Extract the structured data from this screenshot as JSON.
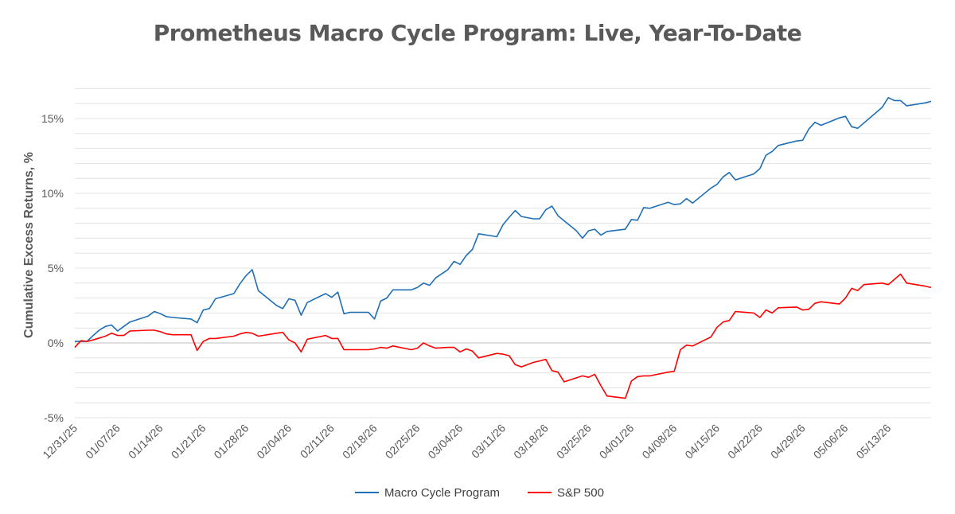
{
  "chart_data": {
    "type": "line",
    "title": "Prometheus Macro Cycle Program: Live, Year-To-Date",
    "ylabel": "Cumulative Excess Returns, %",
    "xlabel": "",
    "x_start": "2025-12-31",
    "x_end": "2026-05-20",
    "x_ticks": [
      "12/31/25",
      "01/07/26",
      "01/14/26",
      "01/21/26",
      "01/28/26",
      "02/04/26",
      "02/11/26",
      "02/18/26",
      "02/25/26",
      "03/04/26",
      "03/11/26",
      "03/18/26",
      "03/25/26",
      "04/01/26",
      "04/08/26",
      "04/15/26",
      "04/22/26",
      "04/29/26",
      "05/06/26",
      "05/13/26"
    ],
    "y_ticks": [
      "-5%",
      "0%",
      "5%",
      "10%",
      "15%"
    ],
    "ylim": [
      -5,
      17.5
    ],
    "grid": true,
    "legend_position": "bottom",
    "series": [
      {
        "name": "Macro Cycle Program",
        "color": "#1f6fb5",
        "points": [
          [
            "2025-12-31",
            0.1
          ],
          [
            "2026-01-02",
            0.1
          ],
          [
            "2026-01-03",
            0.5
          ],
          [
            "2026-01-04",
            0.85
          ],
          [
            "2026-01-05",
            1.1
          ],
          [
            "2026-01-06",
            1.2
          ],
          [
            "2026-01-07",
            0.8
          ],
          [
            "2026-01-08",
            1.1
          ],
          [
            "2026-01-09",
            1.4
          ],
          [
            "2026-01-12",
            1.8
          ],
          [
            "2026-01-13",
            2.1
          ],
          [
            "2026-01-14",
            1.95
          ],
          [
            "2026-01-15",
            1.75
          ],
          [
            "2026-01-16",
            1.7
          ],
          [
            "2026-01-19",
            1.6
          ],
          [
            "2026-01-20",
            1.35
          ],
          [
            "2026-01-21",
            2.2
          ],
          [
            "2026-01-22",
            2.3
          ],
          [
            "2026-01-23",
            2.95
          ],
          [
            "2026-01-26",
            3.3
          ],
          [
            "2026-01-27",
            3.95
          ],
          [
            "2026-01-28",
            4.5
          ],
          [
            "2026-01-29",
            4.9
          ],
          [
            "2026-01-30",
            3.5
          ],
          [
            "2026-02-02",
            2.5
          ],
          [
            "2026-02-03",
            2.3
          ],
          [
            "2026-02-04",
            2.95
          ],
          [
            "2026-02-05",
            2.85
          ],
          [
            "2026-02-06",
            1.85
          ],
          [
            "2026-02-07",
            2.7
          ],
          [
            "2026-02-10",
            3.3
          ],
          [
            "2026-02-11",
            3.05
          ],
          [
            "2026-02-12",
            3.4
          ],
          [
            "2026-02-13",
            1.95
          ],
          [
            "2026-02-14",
            2.05
          ],
          [
            "2026-02-17",
            2.05
          ],
          [
            "2026-02-18",
            1.6
          ],
          [
            "2026-02-19",
            2.8
          ],
          [
            "2026-02-20",
            3.0
          ],
          [
            "2026-02-21",
            3.55
          ],
          [
            "2026-02-24",
            3.55
          ],
          [
            "2026-02-25",
            3.7
          ],
          [
            "2026-02-26",
            4.0
          ],
          [
            "2026-02-27",
            3.85
          ],
          [
            "2026-02-28",
            4.35
          ],
          [
            "2026-03-02",
            4.9
          ],
          [
            "2026-03-03",
            5.45
          ],
          [
            "2026-03-04",
            5.25
          ],
          [
            "2026-03-05",
            5.85
          ],
          [
            "2026-03-06",
            6.25
          ],
          [
            "2026-03-07",
            7.3
          ],
          [
            "2026-03-10",
            7.1
          ],
          [
            "2026-03-11",
            7.9
          ],
          [
            "2026-03-12",
            8.4
          ],
          [
            "2026-03-13",
            8.85
          ],
          [
            "2026-03-14",
            8.45
          ],
          [
            "2026-03-16",
            8.3
          ],
          [
            "2026-03-17",
            8.3
          ],
          [
            "2026-03-18",
            8.9
          ],
          [
            "2026-03-19",
            9.15
          ],
          [
            "2026-03-20",
            8.5
          ],
          [
            "2026-03-23",
            7.5
          ],
          [
            "2026-03-24",
            7.0
          ],
          [
            "2026-03-25",
            7.5
          ],
          [
            "2026-03-26",
            7.6
          ],
          [
            "2026-03-27",
            7.2
          ],
          [
            "2026-03-28",
            7.45
          ],
          [
            "2026-03-31",
            7.6
          ],
          [
            "2026-04-01",
            8.25
          ],
          [
            "2026-04-02",
            8.2
          ],
          [
            "2026-04-03",
            9.05
          ],
          [
            "2026-04-04",
            9.0
          ],
          [
            "2026-04-07",
            9.4
          ],
          [
            "2026-04-08",
            9.25
          ],
          [
            "2026-04-09",
            9.3
          ],
          [
            "2026-04-10",
            9.65
          ],
          [
            "2026-04-11",
            9.35
          ],
          [
            "2026-04-14",
            10.35
          ],
          [
            "2026-04-15",
            10.6
          ],
          [
            "2026-04-16",
            11.1
          ],
          [
            "2026-04-17",
            11.4
          ],
          [
            "2026-04-18",
            10.9
          ],
          [
            "2026-04-21",
            11.3
          ],
          [
            "2026-04-22",
            11.65
          ],
          [
            "2026-04-23",
            12.55
          ],
          [
            "2026-04-24",
            12.8
          ],
          [
            "2026-04-25",
            13.2
          ],
          [
            "2026-04-28",
            13.5
          ],
          [
            "2026-04-29",
            13.55
          ],
          [
            "2026-04-30",
            14.3
          ],
          [
            "2026-05-01",
            14.75
          ],
          [
            "2026-05-02",
            14.55
          ],
          [
            "2026-05-05",
            15.05
          ],
          [
            "2026-05-06",
            15.15
          ],
          [
            "2026-05-07",
            14.45
          ],
          [
            "2026-05-08",
            14.35
          ],
          [
            "2026-05-11",
            15.4
          ],
          [
            "2026-05-12",
            15.75
          ],
          [
            "2026-05-13",
            16.4
          ],
          [
            "2026-05-14",
            16.2
          ],
          [
            "2026-05-15",
            16.2
          ],
          [
            "2026-05-16",
            15.85
          ],
          [
            "2026-05-19",
            16.05
          ],
          [
            "2026-05-20",
            16.15
          ]
        ]
      },
      {
        "name": "S&P 500",
        "color": "#ff0000",
        "points": [
          [
            "2025-12-31",
            -0.3
          ],
          [
            "2026-01-01",
            0.15
          ],
          [
            "2026-01-02",
            0.1
          ],
          [
            "2026-01-03",
            0.2
          ],
          [
            "2026-01-05",
            0.45
          ],
          [
            "2026-01-06",
            0.65
          ],
          [
            "2026-01-07",
            0.5
          ],
          [
            "2026-01-08",
            0.5
          ],
          [
            "2026-01-09",
            0.8
          ],
          [
            "2026-01-12",
            0.85
          ],
          [
            "2026-01-13",
            0.85
          ],
          [
            "2026-01-14",
            0.75
          ],
          [
            "2026-01-15",
            0.6
          ],
          [
            "2026-01-16",
            0.55
          ],
          [
            "2026-01-19",
            0.55
          ],
          [
            "2026-01-20",
            -0.5
          ],
          [
            "2026-01-21",
            0.1
          ],
          [
            "2026-01-22",
            0.3
          ],
          [
            "2026-01-23",
            0.3
          ],
          [
            "2026-01-26",
            0.45
          ],
          [
            "2026-01-27",
            0.6
          ],
          [
            "2026-01-28",
            0.7
          ],
          [
            "2026-01-29",
            0.65
          ],
          [
            "2026-01-30",
            0.45
          ],
          [
            "2026-02-02",
            0.65
          ],
          [
            "2026-02-03",
            0.7
          ],
          [
            "2026-02-04",
            0.2
          ],
          [
            "2026-02-05",
            0.0
          ],
          [
            "2026-02-06",
            -0.6
          ],
          [
            "2026-02-07",
            0.25
          ],
          [
            "2026-02-10",
            0.5
          ],
          [
            "2026-02-11",
            0.3
          ],
          [
            "2026-02-12",
            0.3
          ],
          [
            "2026-02-13",
            -0.45
          ],
          [
            "2026-02-14",
            -0.45
          ],
          [
            "2026-02-17",
            -0.45
          ],
          [
            "2026-02-18",
            -0.4
          ],
          [
            "2026-02-19",
            -0.3
          ],
          [
            "2026-02-20",
            -0.35
          ],
          [
            "2026-02-21",
            -0.2
          ],
          [
            "2026-02-24",
            -0.45
          ],
          [
            "2026-02-25",
            -0.35
          ],
          [
            "2026-02-26",
            0.0
          ],
          [
            "2026-02-27",
            -0.2
          ],
          [
            "2026-02-28",
            -0.35
          ],
          [
            "2026-03-02",
            -0.3
          ],
          [
            "2026-03-03",
            -0.3
          ],
          [
            "2026-03-04",
            -0.6
          ],
          [
            "2026-03-05",
            -0.4
          ],
          [
            "2026-03-06",
            -0.55
          ],
          [
            "2026-03-07",
            -1.0
          ],
          [
            "2026-03-10",
            -0.7
          ],
          [
            "2026-03-11",
            -0.75
          ],
          [
            "2026-03-12",
            -0.85
          ],
          [
            "2026-03-13",
            -1.45
          ],
          [
            "2026-03-14",
            -1.6
          ],
          [
            "2026-03-16",
            -1.3
          ],
          [
            "2026-03-17",
            -1.2
          ],
          [
            "2026-03-18",
            -1.1
          ],
          [
            "2026-03-19",
            -1.85
          ],
          [
            "2026-03-20",
            -1.95
          ],
          [
            "2026-03-21",
            -2.6
          ],
          [
            "2026-03-24",
            -2.2
          ],
          [
            "2026-03-25",
            -2.3
          ],
          [
            "2026-03-26",
            -2.1
          ],
          [
            "2026-03-27",
            -2.85
          ],
          [
            "2026-03-28",
            -3.55
          ],
          [
            "2026-03-31",
            -3.7
          ],
          [
            "2026-04-01",
            -2.55
          ],
          [
            "2026-04-02",
            -2.25
          ],
          [
            "2026-04-03",
            -2.2
          ],
          [
            "2026-04-04",
            -2.2
          ],
          [
            "2026-04-07",
            -1.95
          ],
          [
            "2026-04-08",
            -1.9
          ],
          [
            "2026-04-09",
            -0.45
          ],
          [
            "2026-04-10",
            -0.15
          ],
          [
            "2026-04-11",
            -0.2
          ],
          [
            "2026-04-14",
            0.4
          ],
          [
            "2026-04-15",
            1.05
          ],
          [
            "2026-04-16",
            1.4
          ],
          [
            "2026-04-17",
            1.5
          ],
          [
            "2026-04-18",
            2.1
          ],
          [
            "2026-04-21",
            2.0
          ],
          [
            "2026-04-22",
            1.7
          ],
          [
            "2026-04-23",
            2.2
          ],
          [
            "2026-04-24",
            2.0
          ],
          [
            "2026-04-25",
            2.35
          ],
          [
            "2026-04-28",
            2.4
          ],
          [
            "2026-04-29",
            2.2
          ],
          [
            "2026-04-30",
            2.25
          ],
          [
            "2026-05-01",
            2.65
          ],
          [
            "2026-05-02",
            2.75
          ],
          [
            "2026-05-05",
            2.6
          ],
          [
            "2026-05-06",
            3.0
          ],
          [
            "2026-05-07",
            3.65
          ],
          [
            "2026-05-08",
            3.5
          ],
          [
            "2026-05-09",
            3.9
          ],
          [
            "2026-05-12",
            4.0
          ],
          [
            "2026-05-13",
            3.9
          ],
          [
            "2026-05-14",
            4.25
          ],
          [
            "2026-05-15",
            4.6
          ],
          [
            "2026-05-16",
            4.0
          ],
          [
            "2026-05-19",
            3.8
          ],
          [
            "2026-05-20",
            3.7
          ]
        ]
      }
    ]
  }
}
